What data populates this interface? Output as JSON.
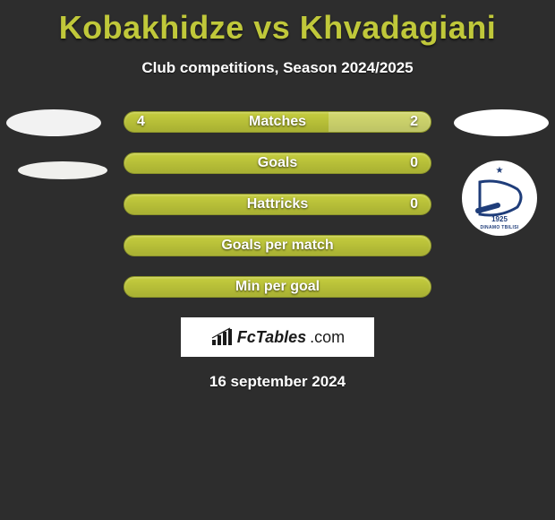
{
  "title": "Kobakhidze vs Khvadagiani",
  "subtitle": "Club competitions, Season 2024/2025",
  "date": "16 september 2024",
  "brand": {
    "text1": "FcTables",
    "text2": ".com"
  },
  "colors": {
    "background": "#2d2d2d",
    "accent": "#c0c83a",
    "bar_fill": "#b5bd36",
    "highlight": "rgba(255,255,255,0.25)",
    "text": "#ffffff"
  },
  "club_badge": {
    "primary": "#1f3d7a",
    "name": "DINAMO TBILISI",
    "year": "1925"
  },
  "bars": [
    {
      "key": "matches",
      "label": "Matches",
      "left_value": "4",
      "right_value": "2",
      "left_pct": 66.7,
      "right_pct": 33.3,
      "show_values": true,
      "highlight_side": "right"
    },
    {
      "key": "goals",
      "label": "Goals",
      "left_value": "",
      "right_value": "0",
      "left_pct": 100,
      "right_pct": 0,
      "show_values": true,
      "highlight_side": "none"
    },
    {
      "key": "hattricks",
      "label": "Hattricks",
      "left_value": "",
      "right_value": "0",
      "left_pct": 100,
      "right_pct": 0,
      "show_values": true,
      "highlight_side": "none"
    },
    {
      "key": "gpm",
      "label": "Goals per match",
      "left_value": "",
      "right_value": "",
      "left_pct": 50,
      "right_pct": 50,
      "show_values": false,
      "highlight_side": "none"
    },
    {
      "key": "mpg",
      "label": "Min per goal",
      "left_value": "",
      "right_value": "",
      "left_pct": 50,
      "right_pct": 50,
      "show_values": false,
      "highlight_side": "none"
    }
  ]
}
